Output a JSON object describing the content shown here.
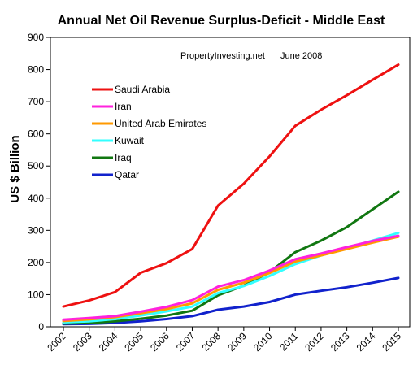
{
  "chart_data": {
    "type": "line",
    "title": "Annual Net Oil Revenue Surplus-Deficit - Middle East",
    "annotation": {
      "source": "PropertyInvesting.net",
      "date": "June 2008"
    },
    "xlabel": "",
    "ylabel": "US $ Billion",
    "x": [
      "2002",
      "2003",
      "2004",
      "2005",
      "2006",
      "2007",
      "2008",
      "2009",
      "2010",
      "2011",
      "2012",
      "2013",
      "2014",
      "2015"
    ],
    "ylim": [
      0,
      900
    ],
    "yticks": [
      "0",
      "100",
      "200",
      "300",
      "400",
      "500",
      "600",
      "700",
      "800",
      "900"
    ],
    "grid": false,
    "legend_position": "upper-left",
    "series": [
      {
        "name": "Saudi Arabia",
        "color": "#ee1111",
        "values": [
          63,
          82,
          108,
          168,
          198,
          242,
          377,
          445,
          530,
          625,
          675,
          720,
          768,
          815
        ]
      },
      {
        "name": "Iran",
        "color": "#ff22dd",
        "values": [
          22,
          27,
          33,
          47,
          62,
          83,
          125,
          145,
          175,
          210,
          228,
          248,
          267,
          283
        ]
      },
      {
        "name": "United Arab Emirates",
        "color": "#ff9900",
        "values": [
          18,
          23,
          30,
          42,
          55,
          73,
          115,
          137,
          167,
          203,
          222,
          242,
          262,
          280
        ]
      },
      {
        "name": "Kuwait",
        "color": "#33ffff",
        "values": [
          14,
          17,
          24,
          35,
          48,
          63,
          105,
          127,
          158,
          195,
          222,
          245,
          268,
          292
        ]
      },
      {
        "name": "Iraq",
        "color": "#117711",
        "values": [
          10,
          12,
          17,
          25,
          35,
          50,
          98,
          128,
          170,
          232,
          268,
          310,
          365,
          420
        ]
      },
      {
        "name": "Qatar",
        "color": "#1122cc",
        "values": [
          8,
          9,
          12,
          17,
          24,
          33,
          53,
          63,
          77,
          100,
          112,
          123,
          137,
          152
        ]
      }
    ]
  }
}
